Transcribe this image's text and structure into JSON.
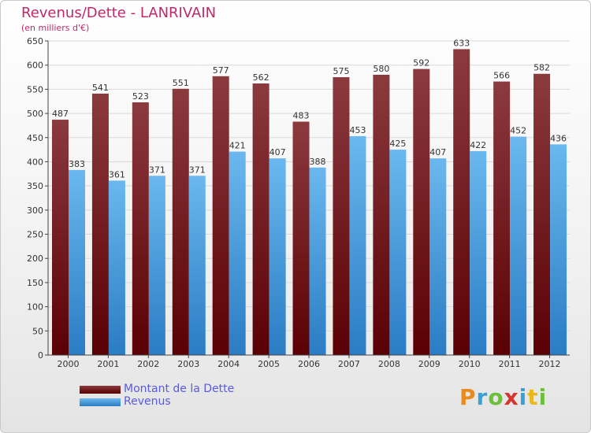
{
  "chart_data": {
    "type": "bar",
    "title": "Revenus/Dette - LANRIVAIN",
    "subtitle": "(en milliers d'€)",
    "categories": [
      "2000",
      "2001",
      "2002",
      "2003",
      "2004",
      "2005",
      "2006",
      "2007",
      "2008",
      "2009",
      "2010",
      "2011",
      "2012"
    ],
    "series": [
      {
        "name": "Montant de la Dette",
        "values": [
          487,
          541,
          523,
          551,
          577,
          562,
          483,
          575,
          580,
          592,
          633,
          566,
          582
        ],
        "color_top": "#8b3a3e",
        "color_bottom": "#5a0004"
      },
      {
        "name": "Revenus",
        "values": [
          383,
          361,
          371,
          371,
          421,
          407,
          388,
          453,
          425,
          407,
          422,
          452,
          436
        ],
        "color_top": "#6ab8ee",
        "color_bottom": "#2a7cc4"
      }
    ],
    "yticks": [
      0,
      50,
      100,
      150,
      200,
      250,
      300,
      350,
      400,
      450,
      500,
      550,
      600,
      650
    ],
    "ylim": [
      0,
      650
    ],
    "grid": true,
    "legend_position": "bottom-left"
  },
  "logo": {
    "letters": [
      "P",
      "r",
      "o",
      "x",
      "i",
      "t",
      "i"
    ],
    "colors": [
      "#e88a1c",
      "#3aa0d8",
      "#6bbf3a",
      "#d8342c",
      "#3aa0d8",
      "#e8b81c",
      "#6bbf3a"
    ]
  }
}
